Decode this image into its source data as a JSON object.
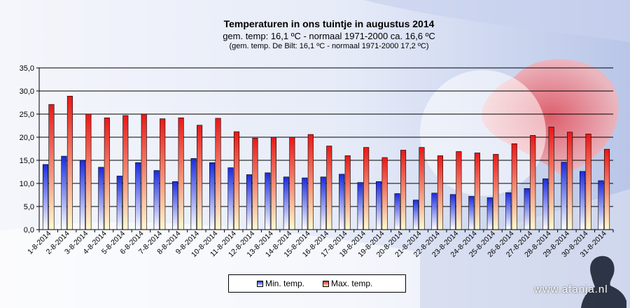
{
  "header": {
    "title": "Temperaturen  in ons tuintje in augustus 2014",
    "subtitle": "gem.  temp: 16,1 ºC - normaal  1971-2000  ca. 16,6 ºC",
    "note": "(gem. temp. De Bilt: 16,1 ºC - normaal 1971-2000 17,2 ºC)"
  },
  "legend": {
    "min_label": "Min. temp.",
    "max_label": "Max. temp."
  },
  "watermark": "www.afanja.nl",
  "colors": {
    "min_top": "#2030e8",
    "min_bottom": "#ffffff",
    "max_top": "#e81f1f",
    "max_bottom": "#fffbd0",
    "grid": "#000000"
  },
  "chart_data": {
    "type": "bar",
    "title": "Temperaturen  in ons tuintje in augustus 2014",
    "ylim": [
      0,
      35
    ],
    "yticks": [
      "0,0",
      "5,0",
      "10,0",
      "15,0",
      "20,0",
      "25,0",
      "30,0",
      "35,0"
    ],
    "ytick_values": [
      0,
      5,
      10,
      15,
      20,
      25,
      30,
      35
    ],
    "grid": true,
    "legend_position": "bottom",
    "categories": [
      "1-8-2014",
      "2-8-2014",
      "3-8-2014",
      "4-8-2014",
      "5-8-2014",
      "6-8-2014",
      "7-8-2014",
      "8-8-2014",
      "9-8-2014",
      "10-8-2014",
      "11-8-2014",
      "12-8-2014",
      "13-8-2014",
      "14-8-2014",
      "15-8-2014",
      "16-8-2014",
      "17-8-2014",
      "18-8-2014",
      "19-8-2014",
      "20-8-2014",
      "21-8-2014",
      "22-8-2014",
      "23-8-2014",
      "24-8-2014",
      "25-8-2014",
      "26-8-2014",
      "27-8-2014",
      "28-8-2014",
      "29-8-2014",
      "30-8-2014",
      "31-8-2014"
    ],
    "series": [
      {
        "name": "Min. temp.",
        "values": [
          14.1,
          15.9,
          15.0,
          13.5,
          11.6,
          14.5,
          12.8,
          10.4,
          15.4,
          14.5,
          13.4,
          11.9,
          12.3,
          11.4,
          11.2,
          11.4,
          12.0,
          10.2,
          10.4,
          7.8,
          6.4,
          7.9,
          7.6,
          7.2,
          6.9,
          8.0,
          8.9,
          11.0,
          14.6,
          12.6,
          10.6
        ]
      },
      {
        "name": "Max. temp.",
        "values": [
          27.1,
          28.9,
          25.0,
          24.2,
          24.7,
          25.0,
          24.0,
          24.2,
          22.6,
          24.1,
          21.2,
          19.8,
          20.0,
          20.0,
          20.6,
          18.1,
          16.0,
          17.8,
          15.6,
          17.2,
          17.8,
          16.0,
          16.9,
          16.6,
          16.3,
          18.6,
          20.4,
          22.2,
          21.1,
          20.7,
          17.4
        ]
      }
    ]
  }
}
